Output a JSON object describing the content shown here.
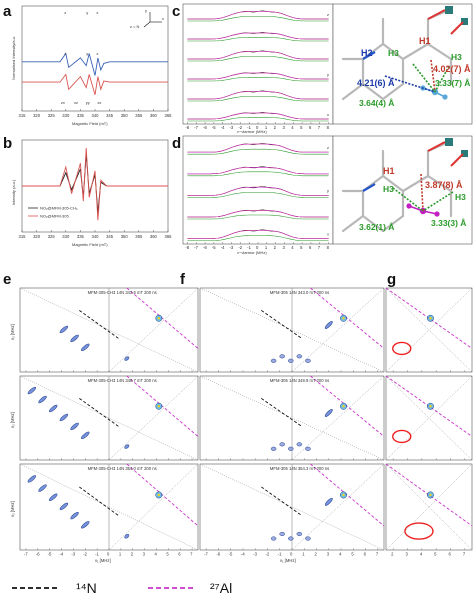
{
  "chart_data": [
    {
      "panel": "a",
      "type": "line",
      "xlabel": "Magnetic Field (mT)",
      "ylabel": "Normalised Intensity/a.u.",
      "xlim": [
        315,
        365
      ],
      "x_ticks": [
        "315",
        "320",
        "325",
        "330",
        "335",
        "340",
        "345",
        "350",
        "355",
        "360",
        "365"
      ],
      "axis_legend": {
        "y_label": "y",
        "x_label": "x",
        "z_label": "z = N"
      },
      "blue_trace_labels": [
        "z",
        "y",
        "x"
      ],
      "red_trace_labels": [
        "z",
        "y",
        "x"
      ],
      "multiplet_labels": [
        "zx",
        "xz",
        "yy",
        "xx"
      ],
      "series": [
        {
          "name": "",
          "color": "#3a63b8",
          "x": [
            315,
            328,
            330,
            331,
            335,
            337,
            338,
            340,
            341,
            342,
            343,
            345,
            365
          ],
          "values": [
            0.55,
            0.55,
            0.7,
            0.45,
            0.62,
            0.48,
            0.7,
            0.3,
            0.62,
            0.4,
            0.52,
            0.55,
            0.55
          ]
        },
        {
          "name": "",
          "color": "#d9534f",
          "x": [
            315,
            328,
            330,
            331,
            335,
            337,
            338,
            340,
            341,
            342,
            343,
            345,
            365
          ],
          "values": [
            0.18,
            0.18,
            0.32,
            0.05,
            0.28,
            0.08,
            0.32,
            -0.05,
            0.28,
            0.05,
            0.2,
            0.18,
            0.18
          ]
        }
      ]
    },
    {
      "panel": "b",
      "type": "line",
      "xlabel": "Magnetic Field (mT)",
      "ylabel": "Intensity (a.u.)",
      "xlim": [
        315,
        365
      ],
      "x_ticks": [
        "315",
        "320",
        "325",
        "330",
        "335",
        "340",
        "345",
        "350",
        "355",
        "360",
        "365"
      ],
      "legend": [
        "NO₂@MFM-305-CH₃",
        "NO₂@MFM-305"
      ],
      "series": [
        {
          "name": "NO₂@MFM-305-CH₃",
          "color": "#222222",
          "x": [
            315,
            328,
            330,
            332,
            335,
            336,
            337,
            338,
            340,
            341,
            342,
            344,
            365
          ],
          "values": [
            0,
            0,
            0.35,
            -0.1,
            0.45,
            -0.3,
            0.85,
            -0.2,
            0.3,
            -0.7,
            0.1,
            0,
            0
          ]
        },
        {
          "name": "NO₂@MFM-305",
          "color": "#d9534f",
          "x": [
            315,
            328,
            330,
            332,
            335,
            336,
            337,
            338,
            340,
            341,
            342,
            344,
            365
          ],
          "values": [
            0,
            0,
            0.5,
            -0.2,
            0.6,
            -0.4,
            1.0,
            -0.3,
            0.4,
            -0.9,
            0.15,
            0,
            0
          ]
        }
      ]
    },
    {
      "panel": "c",
      "type": "line",
      "xlabel": "ν−νlarmor (MHz)",
      "x_ticks": [
        "-8",
        "-7",
        "-6",
        "-5",
        "-4",
        "-3",
        "-2",
        "-1",
        "0",
        "1",
        "2",
        "3",
        "4",
        "5",
        "6",
        "7",
        "8"
      ],
      "trace_labels": [
        "z",
        "y",
        "x"
      ],
      "annotations": [
        "H1",
        "H2",
        "H3",
        "H3",
        "4.02(7) Å",
        "4.21(6) Å",
        "3.33(7) Å",
        "3.64(4) Å"
      ]
    },
    {
      "panel": "d",
      "type": "line",
      "xlabel": "ν−νlarmor (MHz)",
      "x_ticks": [
        "-8",
        "-7",
        "-6",
        "-5",
        "-4",
        "-3",
        "-2",
        "-1",
        "0",
        "1",
        "2",
        "3",
        "4",
        "5",
        "6",
        "7",
        "8"
      ],
      "trace_labels": [
        "z",
        "y",
        "x"
      ],
      "annotations": [
        "H1",
        "H3",
        "H3",
        "3.87(8) Å",
        "3.62(1) Å",
        "3.33(3) Å"
      ]
    },
    {
      "panel": "e",
      "type": "heatmap",
      "xlabel": "ν₁ [MHz]",
      "ylabel": "ν₂ [MHz]",
      "x_ticks": [
        "-7",
        "-6",
        "-5",
        "-4",
        "-3",
        "-2",
        "-1",
        "0",
        "1",
        "2",
        "3",
        "4",
        "5",
        "6",
        "7"
      ],
      "titles": [
        "MFM-305-CH3 14N 342.6 mT 200 ns",
        "MFM-305-CH3 14N 348.7 mT 200 ns",
        "MFM-305-CH3 14N 354.0 mT 200 ns"
      ]
    },
    {
      "panel": "f",
      "type": "heatmap",
      "xlabel": "ν₁ [MHz]",
      "x_ticks": [
        "-7",
        "-6",
        "-5",
        "-4",
        "-3",
        "-2",
        "-1",
        "0",
        "1",
        "2",
        "3",
        "4",
        "5",
        "6",
        "7"
      ],
      "titles": [
        "MFM-305 14N 343.0 mT 200 ns",
        "MFM-305 14N 348.9 mT 200 ns",
        "MFM-305 14N 354.3 mT 200 ns"
      ]
    },
    {
      "panel": "g",
      "type": "heatmap",
      "x_ticks": [
        "2",
        "3",
        "4",
        "5",
        "6",
        "7"
      ]
    }
  ],
  "panel_labels": {
    "a": "a",
    "b": "b",
    "c": "c",
    "d": "d",
    "e": "e",
    "f": "f",
    "g": "g"
  },
  "bottom_legend": {
    "n14": "¹⁴N",
    "al27": "²⁷Al"
  },
  "colors": {
    "n14_line": "#111111",
    "al27_line": "#cc33cc",
    "blue": "#3a63b8",
    "red": "#d9534f",
    "green": "#2a9a2a"
  }
}
